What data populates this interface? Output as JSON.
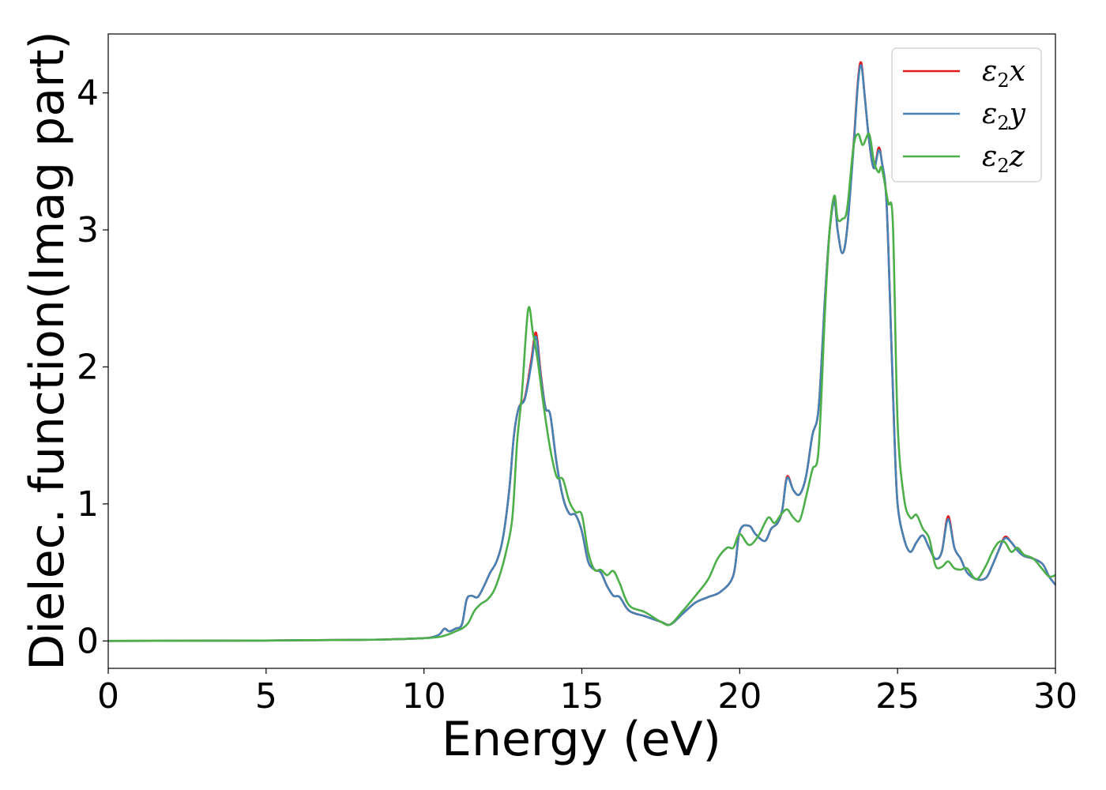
{
  "chart_data": {
    "type": "line",
    "xlabel": "Energy (eV)",
    "ylabel": "Dielec. function(Imag part)",
    "xlim": [
      0,
      30
    ],
    "ylim": [
      -0.2,
      4.43
    ],
    "xticks": [
      0,
      5,
      10,
      15,
      20,
      25,
      30
    ],
    "yticks": [
      0,
      1,
      2,
      3,
      4
    ],
    "grid": false,
    "legend_position": "top-right",
    "series": [
      {
        "name": "ε₂x",
        "legend_base": "ε",
        "legend_sub": "2",
        "legend_tail": "x",
        "color": "#e41a1c",
        "x": [
          0,
          5,
          8,
          9,
          10,
          10.3,
          10.5,
          10.65,
          10.8,
          11,
          11.2,
          11.35,
          11.5,
          11.7,
          11.9,
          12.1,
          12.3,
          12.5,
          12.7,
          12.85,
          13.0,
          13.2,
          13.4,
          13.55,
          13.7,
          13.85,
          14.0,
          14.2,
          14.4,
          14.6,
          14.8,
          15.0,
          15.2,
          15.4,
          15.6,
          15.8,
          16.0,
          16.2,
          16.5,
          17.0,
          17.5,
          17.8,
          18.2,
          18.6,
          19.0,
          19.4,
          19.8,
          20.0,
          20.3,
          20.5,
          20.8,
          21.0,
          21.2,
          21.35,
          21.5,
          21.7,
          21.9,
          22.1,
          22.3,
          22.5,
          22.7,
          22.85,
          23.0,
          23.1,
          23.25,
          23.4,
          23.6,
          23.75,
          23.85,
          23.95,
          24.1,
          24.25,
          24.4,
          24.5,
          24.65,
          24.8,
          24.9,
          25.0,
          25.2,
          25.4,
          25.6,
          25.8,
          26.0,
          26.2,
          26.4,
          26.6,
          26.8,
          27.0,
          27.2,
          27.5,
          27.8,
          28.0,
          28.2,
          28.4,
          28.6,
          28.8,
          29.0,
          29.3,
          29.6,
          29.8,
          30.0
        ],
        "y": [
          0,
          0.003,
          0.008,
          0.012,
          0.02,
          0.03,
          0.05,
          0.09,
          0.07,
          0.09,
          0.12,
          0.3,
          0.33,
          0.32,
          0.4,
          0.5,
          0.58,
          0.75,
          1.1,
          1.5,
          1.7,
          1.78,
          2.05,
          2.25,
          1.95,
          1.7,
          1.65,
          1.3,
          1.05,
          0.93,
          0.92,
          0.8,
          0.58,
          0.52,
          0.5,
          0.4,
          0.33,
          0.32,
          0.22,
          0.18,
          0.14,
          0.12,
          0.2,
          0.28,
          0.32,
          0.36,
          0.48,
          0.8,
          0.84,
          0.78,
          0.73,
          0.82,
          0.86,
          0.96,
          1.2,
          1.1,
          1.07,
          1.2,
          1.5,
          1.7,
          2.5,
          3.0,
          3.22,
          3.0,
          2.83,
          3.0,
          3.6,
          4.1,
          4.22,
          4.0,
          3.65,
          3.45,
          3.6,
          3.5,
          3.2,
          2.2,
          1.5,
          1.0,
          0.75,
          0.65,
          0.72,
          0.77,
          0.68,
          0.6,
          0.65,
          0.91,
          0.68,
          0.6,
          0.5,
          0.45,
          0.46,
          0.55,
          0.66,
          0.76,
          0.72,
          0.66,
          0.62,
          0.6,
          0.56,
          0.47,
          0.41
        ]
      },
      {
        "name": "ε₂y",
        "legend_base": "ε",
        "legend_sub": "2",
        "legend_tail": "y",
        "color": "#4682b4",
        "x": [
          0,
          5,
          8,
          9,
          10,
          10.3,
          10.5,
          10.65,
          10.8,
          11,
          11.2,
          11.35,
          11.5,
          11.7,
          11.9,
          12.1,
          12.3,
          12.5,
          12.7,
          12.85,
          13.0,
          13.2,
          13.4,
          13.55,
          13.7,
          13.85,
          14.0,
          14.2,
          14.4,
          14.6,
          14.8,
          15.0,
          15.2,
          15.4,
          15.6,
          15.8,
          16.0,
          16.2,
          16.5,
          17.0,
          17.5,
          17.8,
          18.2,
          18.6,
          19.0,
          19.4,
          19.8,
          20.0,
          20.3,
          20.5,
          20.8,
          21.0,
          21.2,
          21.35,
          21.5,
          21.7,
          21.9,
          22.1,
          22.3,
          22.5,
          22.7,
          22.85,
          23.0,
          23.1,
          23.25,
          23.4,
          23.6,
          23.75,
          23.85,
          23.95,
          24.1,
          24.25,
          24.4,
          24.5,
          24.65,
          24.8,
          24.9,
          25.0,
          25.2,
          25.4,
          25.6,
          25.8,
          26.0,
          26.2,
          26.4,
          26.6,
          26.8,
          27.0,
          27.2,
          27.5,
          27.8,
          28.0,
          28.2,
          28.4,
          28.6,
          28.8,
          29.0,
          29.3,
          29.6,
          29.8,
          30.0
        ],
        "y": [
          0,
          0.003,
          0.008,
          0.012,
          0.02,
          0.03,
          0.05,
          0.09,
          0.07,
          0.09,
          0.12,
          0.3,
          0.33,
          0.32,
          0.4,
          0.5,
          0.58,
          0.75,
          1.1,
          1.5,
          1.7,
          1.77,
          2.02,
          2.22,
          1.93,
          1.7,
          1.65,
          1.3,
          1.05,
          0.93,
          0.92,
          0.8,
          0.58,
          0.52,
          0.5,
          0.4,
          0.33,
          0.32,
          0.22,
          0.18,
          0.14,
          0.12,
          0.2,
          0.28,
          0.32,
          0.36,
          0.48,
          0.8,
          0.84,
          0.78,
          0.73,
          0.82,
          0.86,
          0.96,
          1.19,
          1.1,
          1.07,
          1.2,
          1.5,
          1.7,
          2.5,
          3.0,
          3.21,
          3.0,
          2.83,
          3.0,
          3.58,
          4.08,
          4.2,
          4.0,
          3.65,
          3.45,
          3.58,
          3.5,
          3.2,
          2.2,
          1.5,
          1.0,
          0.75,
          0.65,
          0.72,
          0.77,
          0.68,
          0.6,
          0.65,
          0.89,
          0.68,
          0.6,
          0.5,
          0.45,
          0.46,
          0.55,
          0.66,
          0.75,
          0.72,
          0.66,
          0.62,
          0.6,
          0.56,
          0.47,
          0.41
        ]
      },
      {
        "name": "ε₂z",
        "legend_base": "ε",
        "legend_sub": "2",
        "legend_tail": "z",
        "color": "#4daf4a",
        "x": [
          0,
          5,
          8,
          9,
          10,
          10.5,
          10.8,
          11.0,
          11.2,
          11.4,
          11.6,
          11.8,
          12.0,
          12.2,
          12.4,
          12.6,
          12.8,
          12.95,
          13.1,
          13.3,
          13.45,
          13.6,
          13.8,
          14.0,
          14.2,
          14.4,
          14.6,
          14.8,
          15.0,
          15.2,
          15.4,
          15.6,
          15.8,
          16.0,
          16.2,
          16.5,
          17.0,
          17.5,
          17.8,
          18.2,
          18.6,
          19.0,
          19.3,
          19.6,
          19.8,
          20.0,
          20.3,
          20.6,
          20.9,
          21.1,
          21.3,
          21.5,
          21.7,
          21.9,
          22.1,
          22.3,
          22.5,
          22.7,
          22.85,
          23.0,
          23.1,
          23.25,
          23.4,
          23.6,
          23.75,
          23.9,
          24.1,
          24.25,
          24.4,
          24.5,
          24.7,
          24.85,
          25.0,
          25.2,
          25.4,
          25.6,
          25.8,
          26.0,
          26.2,
          26.4,
          26.6,
          26.8,
          27.0,
          27.2,
          27.5,
          27.8,
          28.0,
          28.2,
          28.4,
          28.6,
          28.8,
          29.0,
          29.3,
          29.6,
          29.8,
          30.0
        ],
        "y": [
          0,
          0.003,
          0.008,
          0.012,
          0.02,
          0.03,
          0.05,
          0.07,
          0.09,
          0.13,
          0.22,
          0.27,
          0.3,
          0.36,
          0.48,
          0.65,
          0.9,
          1.45,
          1.8,
          2.42,
          2.25,
          2.05,
          1.7,
          1.4,
          1.2,
          1.18,
          1.02,
          0.94,
          0.92,
          0.65,
          0.52,
          0.52,
          0.48,
          0.51,
          0.42,
          0.26,
          0.21,
          0.14,
          0.12,
          0.22,
          0.33,
          0.45,
          0.6,
          0.68,
          0.68,
          0.78,
          0.7,
          0.77,
          0.9,
          0.86,
          0.92,
          0.96,
          0.9,
          0.88,
          1.05,
          1.25,
          1.4,
          2.4,
          3.0,
          3.25,
          3.08,
          3.08,
          3.15,
          3.6,
          3.7,
          3.62,
          3.7,
          3.5,
          3.42,
          3.45,
          3.2,
          3.05,
          1.6,
          1.05,
          0.9,
          0.92,
          0.82,
          0.75,
          0.55,
          0.54,
          0.58,
          0.53,
          0.52,
          0.53,
          0.45,
          0.55,
          0.65,
          0.72,
          0.72,
          0.65,
          0.68,
          0.63,
          0.6,
          0.52,
          0.47,
          0.48
        ]
      }
    ]
  }
}
